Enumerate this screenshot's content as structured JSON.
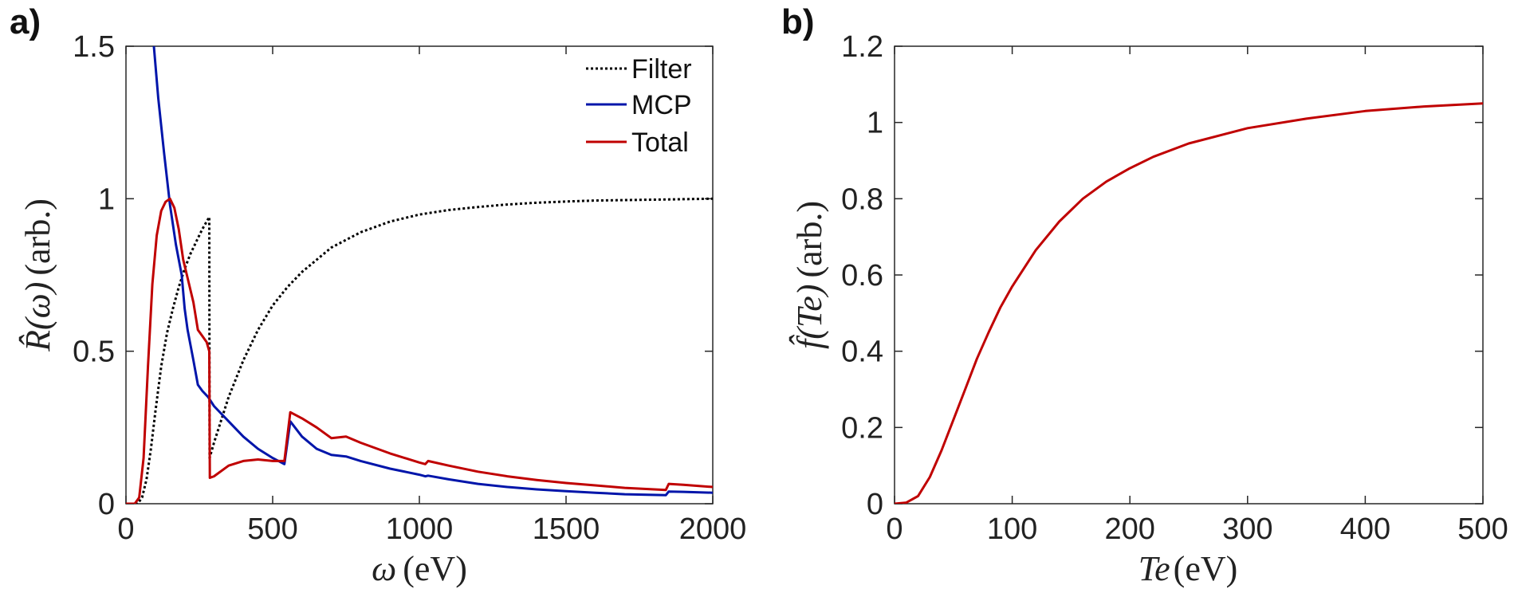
{
  "chart_data": [
    {
      "panel": "a)",
      "type": "line",
      "xlabel": {
        "sym": "ω",
        "unit": "(eV)"
      },
      "ylabel": {
        "sym": "R̂(ω)",
        "unit": "(arb.)"
      },
      "xlim": [
        0,
        2000
      ],
      "ylim": [
        0,
        1.5
      ],
      "xticks": [
        0,
        500,
        1000,
        1500,
        2000
      ],
      "xtick_labels": [
        "0",
        "500",
        "1000",
        "1500",
        "2000"
      ],
      "yticks": [
        0,
        0.5,
        1,
        1.5
      ],
      "ytick_labels": [
        "0",
        "0.5",
        "1",
        "1.5"
      ],
      "legend_position": "top-right",
      "series": [
        {
          "name": "Filter",
          "color": "#000000",
          "style": "dotted",
          "points": [
            [
              0,
              0
            ],
            [
              40,
              0
            ],
            [
              55,
              0.02
            ],
            [
              70,
              0.08
            ],
            [
              85,
              0.18
            ],
            [
              100,
              0.3
            ],
            [
              120,
              0.45
            ],
            [
              140,
              0.56
            ],
            [
              160,
              0.64
            ],
            [
              180,
              0.71
            ],
            [
              200,
              0.77
            ],
            [
              220,
              0.82
            ],
            [
              240,
              0.86
            ],
            [
              260,
              0.9
            ],
            [
              284,
              0.94
            ],
            [
              285,
              0.15
            ],
            [
              300,
              0.2
            ],
            [
              350,
              0.35
            ],
            [
              400,
              0.47
            ],
            [
              450,
              0.57
            ],
            [
              500,
              0.65
            ],
            [
              550,
              0.71
            ],
            [
              600,
              0.76
            ],
            [
              700,
              0.84
            ],
            [
              800,
              0.89
            ],
            [
              900,
              0.925
            ],
            [
              1000,
              0.948
            ],
            [
              1100,
              0.963
            ],
            [
              1200,
              0.973
            ],
            [
              1300,
              0.981
            ],
            [
              1400,
              0.987
            ],
            [
              1500,
              0.991
            ],
            [
              1600,
              0.994
            ],
            [
              1800,
              0.997
            ],
            [
              2000,
              1.0
            ]
          ]
        },
        {
          "name": "MCP",
          "color": "#0015AA",
          "style": "solid",
          "points": [
            [
              95,
              1.5
            ],
            [
              110,
              1.33
            ],
            [
              130,
              1.15
            ],
            [
              150,
              0.98
            ],
            [
              170,
              0.85
            ],
            [
              190,
              0.75
            ],
            [
              200,
              0.64
            ],
            [
              210,
              0.57
            ],
            [
              230,
              0.47
            ],
            [
              245,
              0.39
            ],
            [
              260,
              0.37
            ],
            [
              280,
              0.35
            ],
            [
              300,
              0.32
            ],
            [
              350,
              0.27
            ],
            [
              400,
              0.22
            ],
            [
              450,
              0.18
            ],
            [
              500,
              0.15
            ],
            [
              540,
              0.13
            ],
            [
              560,
              0.27
            ],
            [
              600,
              0.22
            ],
            [
              650,
              0.18
            ],
            [
              700,
              0.16
            ],
            [
              750,
              0.155
            ],
            [
              800,
              0.14
            ],
            [
              900,
              0.115
            ],
            [
              1000,
              0.095
            ],
            [
              1020,
              0.09
            ],
            [
              1030,
              0.092
            ],
            [
              1100,
              0.08
            ],
            [
              1200,
              0.065
            ],
            [
              1300,
              0.055
            ],
            [
              1400,
              0.047
            ],
            [
              1500,
              0.041
            ],
            [
              1600,
              0.036
            ],
            [
              1700,
              0.031
            ],
            [
              1840,
              0.028
            ],
            [
              1850,
              0.04
            ],
            [
              1900,
              0.039
            ],
            [
              2000,
              0.036
            ]
          ]
        },
        {
          "name": "Total",
          "color": "#C00000",
          "style": "solid",
          "points": [
            [
              0,
              0
            ],
            [
              30,
              0
            ],
            [
              45,
              0.02
            ],
            [
              60,
              0.15
            ],
            [
              75,
              0.45
            ],
            [
              90,
              0.72
            ],
            [
              105,
              0.88
            ],
            [
              120,
              0.96
            ],
            [
              135,
              0.99
            ],
            [
              150,
              1.0
            ],
            [
              165,
              0.97
            ],
            [
              180,
              0.9
            ],
            [
              195,
              0.8
            ],
            [
              210,
              0.74
            ],
            [
              230,
              0.66
            ],
            [
              245,
              0.57
            ],
            [
              260,
              0.55
            ],
            [
              275,
              0.53
            ],
            [
              284,
              0.5
            ],
            [
              286,
              0.085
            ],
            [
              300,
              0.09
            ],
            [
              350,
              0.125
            ],
            [
              400,
              0.14
            ],
            [
              450,
              0.145
            ],
            [
              500,
              0.14
            ],
            [
              540,
              0.14
            ],
            [
              560,
              0.3
            ],
            [
              600,
              0.28
            ],
            [
              650,
              0.25
            ],
            [
              700,
              0.215
            ],
            [
              750,
              0.22
            ],
            [
              800,
              0.2
            ],
            [
              900,
              0.165
            ],
            [
              1000,
              0.135
            ],
            [
              1020,
              0.13
            ],
            [
              1030,
              0.14
            ],
            [
              1100,
              0.125
            ],
            [
              1200,
              0.105
            ],
            [
              1300,
              0.09
            ],
            [
              1400,
              0.078
            ],
            [
              1500,
              0.068
            ],
            [
              1600,
              0.06
            ],
            [
              1700,
              0.052
            ],
            [
              1840,
              0.045
            ],
            [
              1850,
              0.065
            ],
            [
              1900,
              0.062
            ],
            [
              2000,
              0.055
            ]
          ]
        }
      ]
    },
    {
      "panel": "b)",
      "type": "line",
      "xlabel": {
        "sym": "Te",
        "unit": "(eV)"
      },
      "ylabel": {
        "sym": "f̂(Te)",
        "unit": "(arb.)"
      },
      "xlim": [
        0,
        500
      ],
      "ylim": [
        0,
        1.2
      ],
      "xticks": [
        0,
        100,
        200,
        300,
        400,
        500
      ],
      "xtick_labels": [
        "0",
        "100",
        "200",
        "300",
        "400",
        "500"
      ],
      "yticks": [
        0,
        0.2,
        0.4,
        0.6,
        0.8,
        1.0,
        1.2
      ],
      "ytick_labels": [
        "0",
        "0.2",
        "0.4",
        "0.6",
        "0.8",
        "1",
        "1.2"
      ],
      "series": [
        {
          "name": "f(Te)",
          "color": "#C00000",
          "style": "solid",
          "points": [
            [
              0,
              0
            ],
            [
              10,
              0.003
            ],
            [
              20,
              0.02
            ],
            [
              30,
              0.07
            ],
            [
              40,
              0.14
            ],
            [
              50,
              0.22
            ],
            [
              60,
              0.3
            ],
            [
              70,
              0.38
            ],
            [
              80,
              0.45
            ],
            [
              90,
              0.515
            ],
            [
              100,
              0.57
            ],
            [
              120,
              0.665
            ],
            [
              140,
              0.74
            ],
            [
              160,
              0.8
            ],
            [
              180,
              0.845
            ],
            [
              200,
              0.88
            ],
            [
              220,
              0.91
            ],
            [
              250,
              0.945
            ],
            [
              300,
              0.985
            ],
            [
              350,
              1.01
            ],
            [
              400,
              1.03
            ],
            [
              450,
              1.042
            ],
            [
              500,
              1.05
            ]
          ]
        }
      ]
    }
  ]
}
